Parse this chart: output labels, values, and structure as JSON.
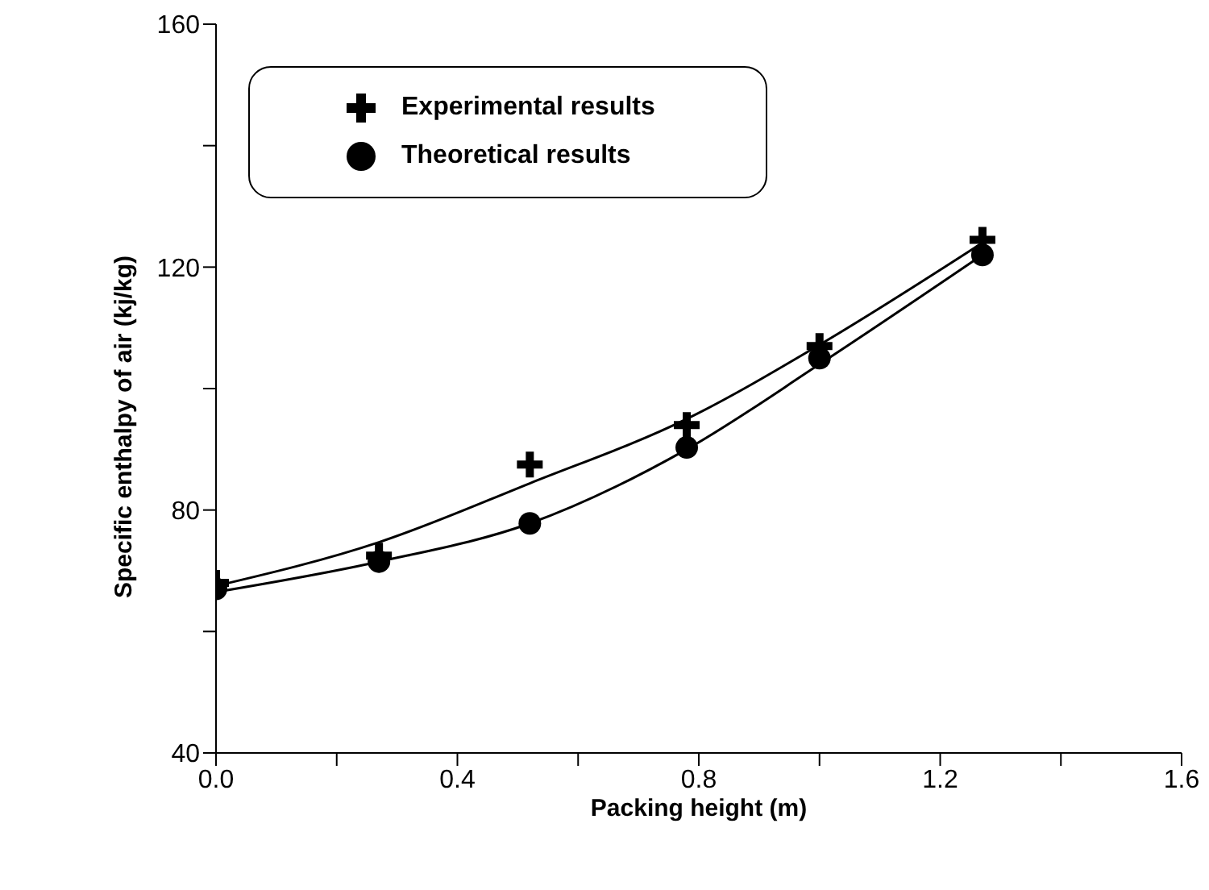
{
  "chart_data": {
    "type": "scatter",
    "xlabel": "Packing height (m)",
    "ylabel": "Specific enthalpy of air (kj/kg)",
    "xlim": [
      0,
      1.6
    ],
    "xticks": [
      {
        "value": 0,
        "label": "0.0"
      },
      {
        "value": 0.2,
        "label": null
      },
      {
        "value": 0.4,
        "label": "0.4"
      },
      {
        "value": 0.6,
        "label": null
      },
      {
        "value": 0.8,
        "label": "0.8"
      },
      {
        "value": 1.0,
        "label": null
      },
      {
        "value": 1.2,
        "label": "1.2"
      },
      {
        "value": 1.4,
        "label": null
      },
      {
        "value": 1.6,
        "label": "1.6"
      }
    ],
    "ylim": [
      40,
      160
    ],
    "yticks": [
      40,
      {
        "value": 60,
        "label": null
      },
      80,
      {
        "value": 100,
        "label": null
      },
      120,
      {
        "value": 140,
        "label": null
      },
      160
    ],
    "grid": false,
    "legend": "top left",
    "series": [
      {
        "name": "Experimental results",
        "marker": "cross",
        "color": "#000000",
        "x": [
          0,
          0.27,
          0.52,
          0.78,
          1.0,
          1.27
        ],
        "values": [
          68,
          72.5,
          87.5,
          94,
          107,
          124.5
        ]
      },
      {
        "name": "Theoretical results",
        "marker": "circle",
        "color": "#000000",
        "x": [
          0,
          0.27,
          0.52,
          0.78,
          1.0,
          1.27
        ],
        "values": [
          67,
          71.5,
          77.8,
          90.3,
          105,
          122
        ]
      },
      {
        "type": "line",
        "marker": "none",
        "color": "#000000",
        "x": [
          0,
          0.27,
          0.52,
          0.78,
          1.0,
          1.27
        ],
        "values": [
          67.5,
          74.7,
          84.4,
          95,
          107.2,
          124
        ]
      },
      {
        "type": "line",
        "marker": "none",
        "color": "#000000",
        "x": [
          0,
          0.27,
          0.52,
          0.78,
          1.0,
          1.27
        ],
        "values": [
          66.5,
          71.5,
          77.8,
          90,
          104,
          122
        ]
      }
    ]
  }
}
